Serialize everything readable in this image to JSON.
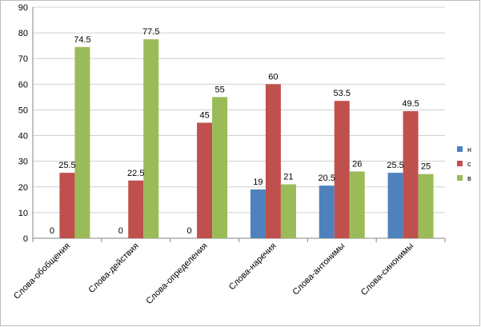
{
  "chart_data": {
    "type": "bar",
    "categories": [
      "Слова-обобщения",
      "Слова-действия",
      "Слова-определения",
      "Слова-наречия",
      "Слова-антонимы",
      "Слова-синонимы"
    ],
    "series": [
      {
        "name": "н",
        "color": "#4f81bd",
        "values": [
          0,
          0,
          0,
          19,
          20.5,
          25.5
        ]
      },
      {
        "name": "с",
        "color": "#c0504d",
        "values": [
          25.5,
          22.5,
          45,
          60,
          53.5,
          49.5
        ]
      },
      {
        "name": "в",
        "color": "#9bbb59",
        "values": [
          74.5,
          77.5,
          55,
          21,
          26,
          25
        ]
      }
    ],
    "ylim": [
      0,
      90
    ],
    "yticks": [
      0,
      10,
      20,
      30,
      40,
      50,
      60,
      70,
      80,
      90
    ],
    "grid": "horizontal",
    "legend": "right"
  }
}
